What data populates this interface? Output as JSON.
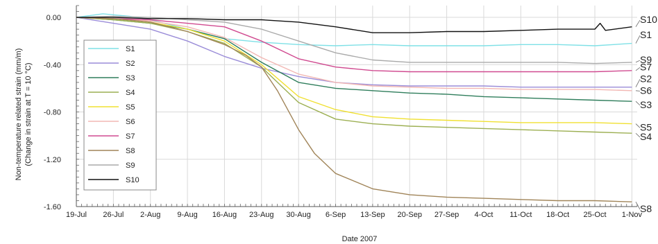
{
  "chart_data": {
    "type": "line",
    "title": "",
    "xlabel": "Date 2007",
    "ylabel": "Non-temperature related strain (mm/m)",
    "ylabel2": "(Change in strain at T = 10 °C)",
    "x_ticks": [
      "19-Jul",
      "26-Jul",
      "2-Aug",
      "9-Aug",
      "16-Aug",
      "23-Aug",
      "30-Aug",
      "6-Sep",
      "13-Sep",
      "20-Sep",
      "27-Sep",
      "4-Oct",
      "11-Oct",
      "18-Oct",
      "25-Oct",
      "1-Nov"
    ],
    "x_tick_days": [
      0,
      7,
      14,
      21,
      28,
      35,
      42,
      49,
      56,
      63,
      70,
      77,
      84,
      91,
      98,
      105
    ],
    "xlim_days": [
      0,
      106
    ],
    "y_ticks": [
      "0.00",
      "-0.40",
      "-0.80",
      "-1.20",
      "-1.60"
    ],
    "y_tick_values": [
      0,
      -0.4,
      -0.8,
      -1.2,
      -1.6
    ],
    "ylim": [
      -1.6,
      0.1
    ],
    "grid": true,
    "legend_position": "left",
    "x_units": "days since 19-Jul-2007",
    "series": [
      {
        "name": "S1",
        "color": "#7ee0e6",
        "end_label": "S1",
        "x": [
          0,
          5,
          10,
          14,
          21,
          28,
          35,
          42,
          49,
          56,
          63,
          70,
          77,
          84,
          91,
          98,
          105
        ],
        "y": [
          0,
          0.03,
          0.01,
          -0.02,
          -0.1,
          -0.18,
          -0.21,
          -0.23,
          -0.24,
          -0.23,
          -0.24,
          -0.24,
          -0.24,
          -0.23,
          -0.23,
          -0.24,
          -0.22
        ]
      },
      {
        "name": "S2",
        "color": "#9a8cd8",
        "end_label": "S2",
        "x": [
          0,
          7,
          14,
          21,
          28,
          35,
          42,
          49,
          56,
          63,
          70,
          77,
          84,
          91,
          98,
          105
        ],
        "y": [
          0,
          -0.05,
          -0.1,
          -0.2,
          -0.33,
          -0.43,
          -0.5,
          -0.55,
          -0.57,
          -0.58,
          -0.58,
          -0.58,
          -0.59,
          -0.59,
          -0.59,
          -0.59
        ]
      },
      {
        "name": "S3",
        "color": "#2e7d5b",
        "end_label": "S3",
        "x": [
          0,
          7,
          14,
          21,
          28,
          35,
          42,
          49,
          56,
          63,
          70,
          77,
          84,
          91,
          98,
          105
        ],
        "y": [
          0,
          -0.02,
          -0.05,
          -0.1,
          -0.18,
          -0.38,
          -0.55,
          -0.6,
          -0.62,
          -0.64,
          -0.65,
          -0.67,
          -0.68,
          -0.69,
          -0.7,
          -0.71
        ]
      },
      {
        "name": "S4",
        "color": "#9caf52",
        "end_label": "S4",
        "x": [
          0,
          7,
          14,
          21,
          28,
          35,
          42,
          49,
          56,
          63,
          70,
          77,
          84,
          91,
          98,
          105
        ],
        "y": [
          0,
          -0.02,
          -0.05,
          -0.12,
          -0.22,
          -0.42,
          -0.72,
          -0.86,
          -0.9,
          -0.92,
          -0.93,
          -0.94,
          -0.95,
          -0.96,
          -0.97,
          -0.98
        ]
      },
      {
        "name": "S5",
        "color": "#f0e030",
        "end_label": "S5",
        "x": [
          0,
          7,
          14,
          21,
          28,
          35,
          42,
          49,
          56,
          63,
          70,
          77,
          84,
          91,
          98,
          105
        ],
        "y": [
          0,
          -0.01,
          -0.04,
          -0.1,
          -0.2,
          -0.4,
          -0.67,
          -0.78,
          -0.84,
          -0.86,
          -0.87,
          -0.88,
          -0.89,
          -0.89,
          -0.89,
          -0.9
        ]
      },
      {
        "name": "S6",
        "color": "#f2b7b3",
        "end_label": "S6",
        "x": [
          0,
          7,
          14,
          21,
          28,
          35,
          42,
          49,
          56,
          63,
          70,
          77,
          84,
          91,
          98,
          105
        ],
        "y": [
          0,
          -0.01,
          -0.03,
          -0.08,
          -0.17,
          -0.34,
          -0.48,
          -0.55,
          -0.58,
          -0.59,
          -0.6,
          -0.6,
          -0.61,
          -0.61,
          -0.61,
          -0.62
        ]
      },
      {
        "name": "S7",
        "color": "#d04a90",
        "end_label": "S7",
        "x": [
          0,
          7,
          14,
          21,
          28,
          35,
          42,
          49,
          56,
          63,
          70,
          77,
          84,
          91,
          98,
          105
        ],
        "y": [
          0,
          -0.01,
          -0.02,
          -0.05,
          -0.08,
          -0.2,
          -0.35,
          -0.42,
          -0.45,
          -0.46,
          -0.46,
          -0.46,
          -0.46,
          -0.46,
          -0.46,
          -0.45
        ]
      },
      {
        "name": "S8",
        "color": "#a08458",
        "end_label": "S8",
        "x": [
          0,
          7,
          14,
          21,
          28,
          32,
          35,
          38,
          42,
          45,
          49,
          56,
          63,
          70,
          77,
          84,
          91,
          98,
          105
        ],
        "y": [
          0,
          -0.01,
          -0.04,
          -0.12,
          -0.23,
          -0.32,
          -0.42,
          -0.62,
          -0.95,
          -1.15,
          -1.32,
          -1.45,
          -1.5,
          -1.52,
          -1.53,
          -1.54,
          -1.55,
          -1.55,
          -1.56
        ]
      },
      {
        "name": "S9",
        "color": "#aaaaaa",
        "end_label": "S9",
        "x": [
          0,
          7,
          14,
          21,
          28,
          35,
          42,
          49,
          56,
          63,
          70,
          77,
          84,
          91,
          98,
          105
        ],
        "y": [
          0,
          0.01,
          0,
          -0.02,
          -0.04,
          -0.1,
          -0.2,
          -0.3,
          -0.36,
          -0.38,
          -0.38,
          -0.38,
          -0.38,
          -0.38,
          -0.39,
          -0.38
        ]
      },
      {
        "name": "S10",
        "color": "#111111",
        "end_label": "S10",
        "x": [
          0,
          7,
          14,
          21,
          28,
          35,
          42,
          49,
          56,
          63,
          70,
          77,
          84,
          91,
          98,
          99,
          100,
          105
        ],
        "y": [
          0,
          0,
          -0.01,
          -0.01,
          -0.02,
          -0.02,
          -0.04,
          -0.08,
          -0.13,
          -0.13,
          -0.12,
          -0.12,
          -0.11,
          -0.1,
          -0.1,
          -0.05,
          -0.11,
          -0.08
        ]
      }
    ],
    "end_labels": [
      {
        "text": "S10",
        "y": 0.0
      },
      {
        "text": "S1",
        "y": -0.13
      },
      {
        "text": "S9",
        "y": -0.34
      },
      {
        "text": "S7",
        "y": -0.4
      },
      {
        "text": "S2",
        "y": -0.5
      },
      {
        "text": "S6",
        "y": -0.6
      },
      {
        "text": "S3",
        "y": -0.72
      },
      {
        "text": "S5",
        "y": -0.91
      },
      {
        "text": "S4",
        "y": -0.99
      },
      {
        "text": "S8",
        "y": -1.6
      }
    ]
  }
}
